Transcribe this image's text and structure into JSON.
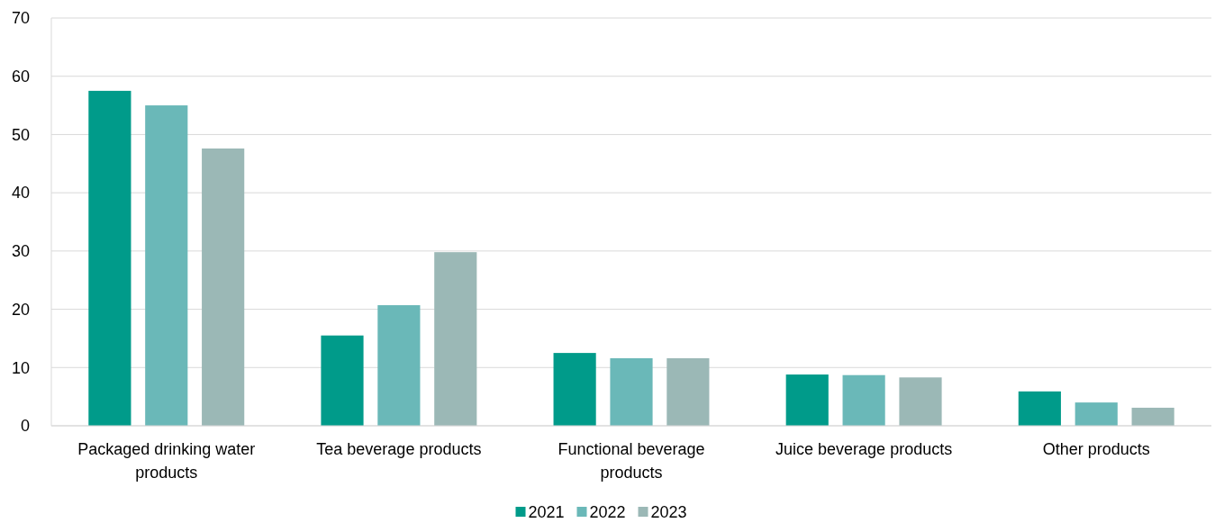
{
  "chart_data": {
    "type": "bar",
    "categories": [
      "Packaged drinking water products",
      "Tea beverage products",
      "Functional beverage products",
      "Juice beverage products",
      "Other products"
    ],
    "series": [
      {
        "name": "2021",
        "color": "#009b8a",
        "values": [
          57.5,
          15.5,
          12.5,
          8.8,
          5.9
        ]
      },
      {
        "name": "2022",
        "color": "#6ab8b8",
        "values": [
          55.0,
          20.7,
          11.6,
          8.7,
          4.0
        ]
      },
      {
        "name": "2023",
        "color": "#9bb8b6",
        "values": [
          47.6,
          29.8,
          11.6,
          8.3,
          3.1
        ]
      }
    ],
    "ylim": [
      0,
      70
    ],
    "yticks": [
      0,
      10,
      20,
      30,
      40,
      50,
      60,
      70
    ],
    "grid": "y",
    "legend": "bottom"
  }
}
